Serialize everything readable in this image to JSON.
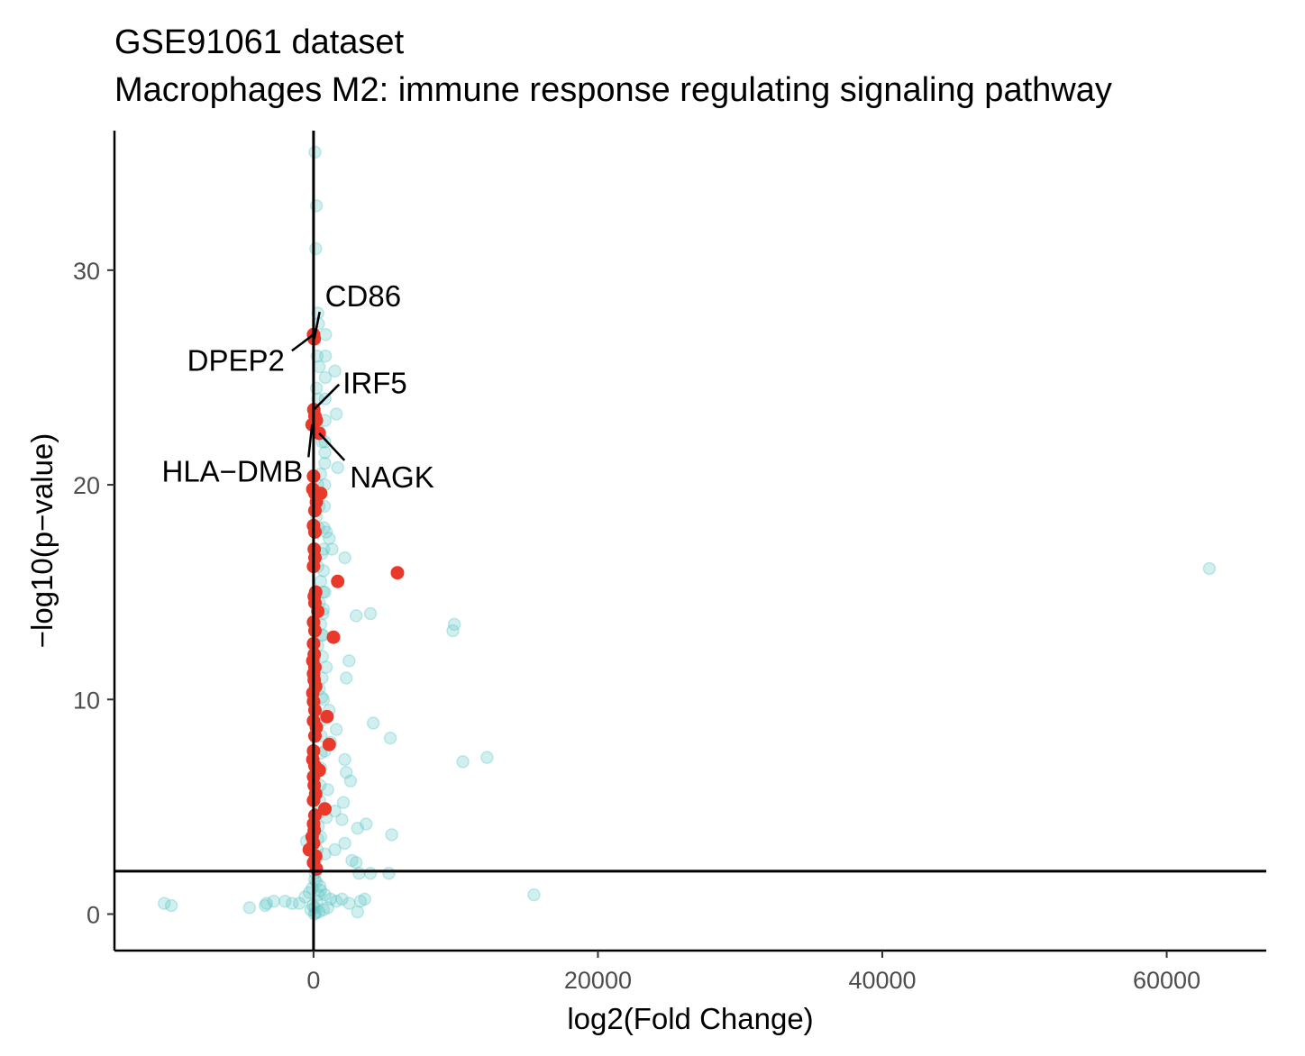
{
  "chart_data": {
    "type": "scatter",
    "title": "GSE91061 dataset",
    "subtitle": "Macrophages M2: immune response regulating signaling pathway",
    "xlabel": "log2(Fold Change)",
    "ylabel": "−log10(p−value)",
    "xlim": [
      -14000,
      67000
    ],
    "ylim": [
      -1.7,
      36.5
    ],
    "x_ticks": [
      0,
      20000,
      40000,
      60000
    ],
    "y_ticks": [
      0,
      10,
      20,
      30
    ],
    "vline_x": 0,
    "hline_y": 2,
    "grid": false,
    "colors": {
      "background": "#5fc7c7",
      "highlight": "#e8392a",
      "axis": "#000000"
    },
    "series": [
      {
        "color": "#5fc7c7",
        "points": [
          [
            100,
            35.5
          ],
          [
            200,
            33
          ],
          [
            150,
            31
          ],
          [
            300,
            28
          ],
          [
            350,
            27.5
          ],
          [
            250,
            26
          ],
          [
            400,
            25.5
          ],
          [
            1500,
            25.3
          ],
          [
            200,
            24.5
          ],
          [
            300,
            24
          ],
          [
            1600,
            23.3
          ],
          [
            400,
            22.5
          ],
          [
            600,
            22
          ],
          [
            800,
            21.5
          ],
          [
            1700,
            20.8
          ],
          [
            500,
            20.5
          ],
          [
            300,
            20
          ],
          [
            400,
            19
          ],
          [
            200,
            18.5
          ],
          [
            350,
            18
          ],
          [
            900,
            17.8
          ],
          [
            1100,
            17.5
          ],
          [
            1300,
            17
          ],
          [
            600,
            16.8
          ],
          [
            2200,
            16.6
          ],
          [
            300,
            16.2
          ],
          [
            500,
            15.5
          ],
          [
            800,
            15
          ],
          [
            400,
            14.5
          ],
          [
            700,
            14.2
          ],
          [
            3000,
            13.9
          ],
          [
            4000,
            14
          ],
          [
            9900,
            13.5
          ],
          [
            9800,
            13.2
          ],
          [
            500,
            13.5
          ],
          [
            600,
            13
          ],
          [
            300,
            12.5
          ],
          [
            2500,
            11.8
          ],
          [
            900,
            11.5
          ],
          [
            2300,
            11
          ],
          [
            400,
            10.5
          ],
          [
            700,
            10
          ],
          [
            1100,
            9.5
          ],
          [
            500,
            9
          ],
          [
            4200,
            8.9
          ],
          [
            1600,
            8.6
          ],
          [
            5400,
            8.2
          ],
          [
            1200,
            8
          ],
          [
            800,
            7.6
          ],
          [
            2200,
            7.2
          ],
          [
            12200,
            7.3
          ],
          [
            10500,
            7.1
          ],
          [
            2300,
            6.6
          ],
          [
            2600,
            6.2
          ],
          [
            1000,
            5.8
          ],
          [
            2100,
            5.2
          ],
          [
            1500,
            4.8
          ],
          [
            900,
            4.5
          ],
          [
            2000,
            4.4
          ],
          [
            3700,
            4.2
          ],
          [
            3100,
            4
          ],
          [
            5500,
            3.7
          ],
          [
            500,
            3.6
          ],
          [
            -500,
            3.4
          ],
          [
            2200,
            3.3
          ],
          [
            1500,
            3
          ],
          [
            800,
            2.8
          ],
          [
            2700,
            2.5
          ],
          [
            3000,
            2.4
          ],
          [
            3200,
            1.9
          ],
          [
            5300,
            1.9
          ],
          [
            4000,
            1.9
          ],
          [
            15500,
            0.9
          ],
          [
            -10500,
            0.5
          ],
          [
            -10000,
            0.4
          ],
          [
            -4500,
            0.3
          ],
          [
            -3400,
            0.4
          ],
          [
            -3300,
            0.5
          ],
          [
            -2800,
            0.6
          ],
          [
            -2000,
            0.6
          ],
          [
            -1500,
            0.5
          ],
          [
            -1000,
            0.5
          ],
          [
            -600,
            0.8
          ],
          [
            -300,
            1.0
          ],
          [
            -100,
            1.2
          ],
          [
            200,
            1.5
          ],
          [
            500,
            1.1
          ],
          [
            800,
            0.9
          ],
          [
            1200,
            0.7
          ],
          [
            1600,
            0.6
          ],
          [
            2000,
            0.7
          ],
          [
            2500,
            0.5
          ],
          [
            3300,
            0.6
          ],
          [
            3600,
            0.7
          ],
          [
            3100,
            0.1
          ],
          [
            -200,
            0.2
          ],
          [
            100,
            0.3
          ],
          [
            400,
            0.1
          ],
          [
            700,
            0.2
          ],
          [
            1000,
            0.3
          ],
          [
            50,
            0.0
          ],
          [
            150,
            0.05
          ],
          [
            -50,
            0.4
          ],
          [
            250,
            0.6
          ],
          [
            350,
            0.9
          ],
          [
            450,
            1.3
          ],
          [
            80,
            1.6
          ],
          [
            120,
            1.9
          ],
          [
            180,
            2.2
          ],
          [
            220,
            2.6
          ],
          [
            260,
            3.0
          ],
          [
            300,
            3.5
          ],
          [
            340,
            4.1
          ],
          [
            380,
            4.7
          ],
          [
            420,
            5.3
          ],
          [
            460,
            6.0
          ],
          [
            500,
            6.8
          ],
          [
            520,
            7.5
          ],
          [
            540,
            8.3
          ],
          [
            560,
            9.2
          ],
          [
            580,
            10.1
          ],
          [
            600,
            11.0
          ],
          [
            620,
            12.0
          ],
          [
            640,
            13.0
          ],
          [
            660,
            14.0
          ],
          [
            680,
            15.0
          ],
          [
            700,
            16.0
          ],
          [
            720,
            17.0
          ],
          [
            740,
            18.0
          ],
          [
            760,
            19.0
          ],
          [
            780,
            20.0
          ],
          [
            790,
            21.0
          ],
          [
            800,
            22.0
          ],
          [
            810,
            23.0
          ],
          [
            820,
            24.0
          ],
          [
            830,
            25.0
          ],
          [
            840,
            26.0
          ],
          [
            850,
            27.0
          ],
          [
            63000,
            16.1
          ]
        ]
      },
      {
        "color": "#e8392a",
        "points": [
          [
            0,
            27
          ],
          [
            50,
            26.8
          ],
          [
            20,
            23.5
          ],
          [
            100,
            23.2
          ],
          [
            200,
            23
          ],
          [
            400,
            22.4
          ],
          [
            -100,
            22.8
          ],
          [
            0,
            20.4
          ],
          [
            -50,
            19.8
          ],
          [
            100,
            19.6
          ],
          [
            500,
            19.6
          ],
          [
            200,
            19.2
          ],
          [
            100,
            18.8
          ],
          [
            0,
            18.1
          ],
          [
            100,
            17.8
          ],
          [
            50,
            17
          ],
          [
            100,
            16.6
          ],
          [
            0,
            16.2
          ],
          [
            5900,
            15.9
          ],
          [
            1700,
            15.5
          ],
          [
            150,
            15.0
          ],
          [
            50,
            14.8
          ],
          [
            100,
            14.5
          ],
          [
            300,
            14.1
          ],
          [
            0,
            13.6
          ],
          [
            100,
            13.2
          ],
          [
            1400,
            12.9
          ],
          [
            0,
            12.6
          ],
          [
            50,
            12.1
          ],
          [
            -50,
            11.8
          ],
          [
            100,
            11.5
          ],
          [
            0,
            11.2
          ],
          [
            50,
            10.9
          ],
          [
            150,
            10.6
          ],
          [
            -50,
            10.3
          ],
          [
            0,
            9.9
          ],
          [
            100,
            9.5
          ],
          [
            950,
            9.2
          ],
          [
            0,
            9.0
          ],
          [
            200,
            8.7
          ],
          [
            100,
            8.3
          ],
          [
            1100,
            7.9
          ],
          [
            0,
            7.6
          ],
          [
            -50,
            7.2
          ],
          [
            100,
            6.9
          ],
          [
            400,
            6.7
          ],
          [
            0,
            6.4
          ],
          [
            50,
            6.0
          ],
          [
            150,
            5.6
          ],
          [
            0,
            5.3
          ],
          [
            800,
            4.9
          ],
          [
            100,
            4.6
          ],
          [
            0,
            4.2
          ],
          [
            50,
            3.9
          ],
          [
            -100,
            3.6
          ],
          [
            0,
            3.3
          ],
          [
            -300,
            3.0
          ],
          [
            150,
            2.7
          ],
          [
            0,
            2.4
          ],
          [
            200,
            2.1
          ]
        ]
      }
    ],
    "labels": [
      {
        "text": "CD86",
        "x": 50,
        "y": 26.8
      },
      {
        "text": "DPEP2",
        "x": 0,
        "y": 27
      },
      {
        "text": "IRF5",
        "x": 20,
        "y": 23.5
      },
      {
        "text": "HLA−DMB",
        "x": -100,
        "y": 22.8
      },
      {
        "text": "NAGK",
        "x": 400,
        "y": 22.4
      }
    ]
  }
}
